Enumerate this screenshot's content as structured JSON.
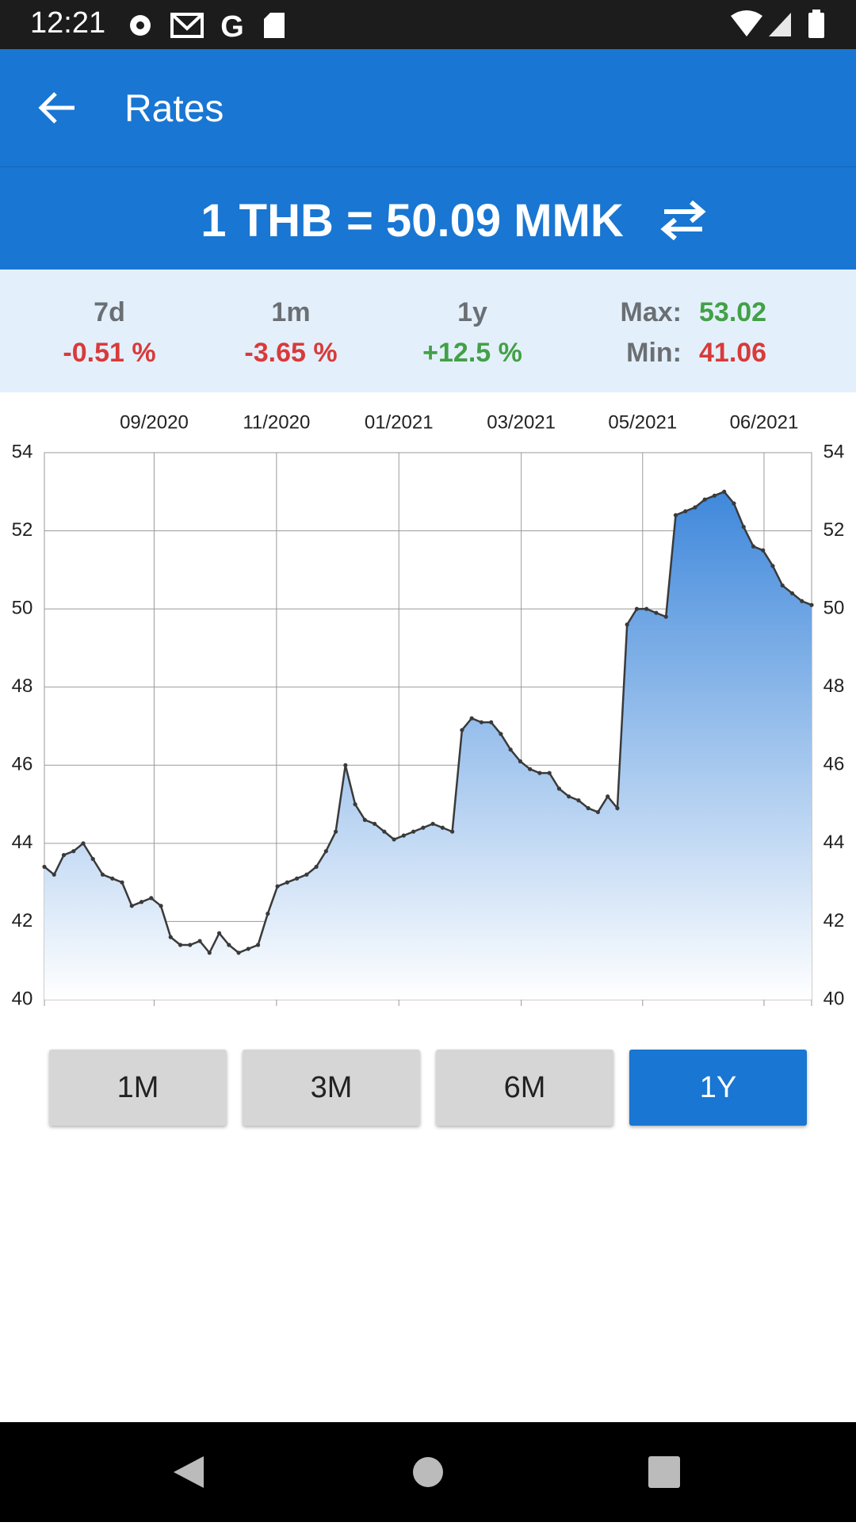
{
  "status_bar": {
    "time": "12:21"
  },
  "app_bar": {
    "title": "Rates"
  },
  "rate": {
    "text": "1 THB = 50.09 MMK"
  },
  "stats": {
    "changes": [
      {
        "label": "7d",
        "value": "-0.51 %",
        "color": "#d93a3a"
      },
      {
        "label": "1m",
        "value": "-3.65 %",
        "color": "#d93a3a"
      },
      {
        "label": "1y",
        "value": "+12.5 %",
        "color": "#43a047"
      }
    ],
    "max": {
      "label": "Max:",
      "value": "53.02",
      "color": "#43a047"
    },
    "min": {
      "label": "Min:",
      "value": "41.06",
      "color": "#d93a3a"
    }
  },
  "chart_data": {
    "type": "area",
    "values": [
      43.4,
      43.2,
      43.7,
      43.8,
      44.0,
      43.6,
      43.2,
      43.1,
      43.0,
      42.4,
      42.5,
      42.6,
      42.4,
      41.6,
      41.4,
      41.4,
      41.5,
      41.2,
      41.7,
      41.4,
      41.2,
      41.3,
      41.4,
      42.2,
      42.9,
      43.0,
      43.1,
      43.2,
      43.4,
      43.8,
      44.3,
      46.0,
      45.0,
      44.6,
      44.5,
      44.3,
      44.1,
      44.2,
      44.3,
      44.4,
      44.5,
      44.4,
      44.3,
      46.9,
      47.2,
      47.1,
      47.1,
      46.8,
      46.4,
      46.1,
      45.9,
      45.8,
      45.8,
      45.4,
      45.2,
      45.1,
      44.9,
      44.8,
      45.2,
      44.9,
      49.6,
      50.0,
      50.0,
      49.9,
      49.8,
      52.4,
      52.5,
      52.6,
      52.8,
      52.9,
      53.0,
      52.7,
      52.1,
      51.6,
      51.5,
      51.1,
      50.6,
      50.4,
      50.2,
      50.1
    ],
    "color": "#3a3a3a",
    "fill_top": "#3f88db",
    "xlim": [
      0,
      79
    ],
    "xticks": [
      {
        "value": 11.3,
        "label": "09/2020"
      },
      {
        "value": 23.9,
        "label": "11/2020"
      },
      {
        "value": 36.5,
        "label": "01/2021"
      },
      {
        "value": 49.1,
        "label": "03/2021"
      },
      {
        "value": 61.6,
        "label": "05/2021"
      },
      {
        "value": 74.1,
        "label": "06/2021"
      }
    ],
    "ylim": [
      40,
      54
    ],
    "yticks": [
      40,
      42,
      44,
      46,
      48,
      50,
      52,
      54
    ],
    "grid": true
  },
  "range_buttons": {
    "options": [
      "1M",
      "3M",
      "6M",
      "1Y"
    ],
    "selected": 3
  }
}
